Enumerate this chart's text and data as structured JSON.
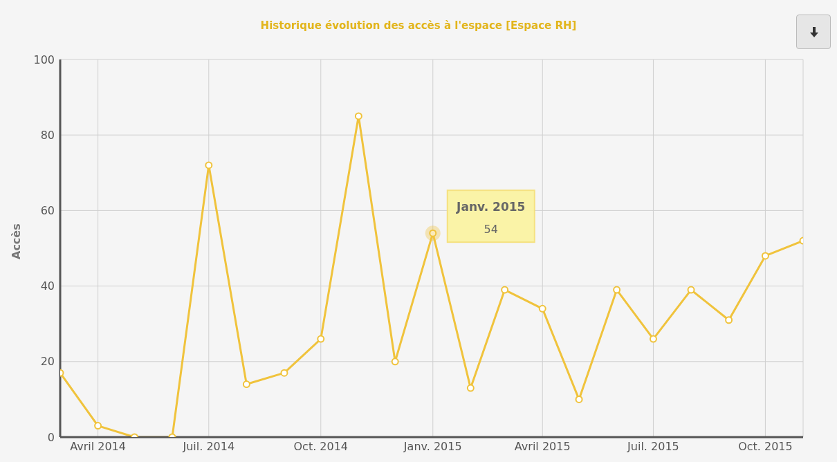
{
  "chart_data": {
    "type": "line",
    "title": "Historique évolution des accès à l'espace [Espace RH]",
    "ylabel": "Accès",
    "x": [
      "2014-03",
      "2014-04",
      "2014-05",
      "2014-06",
      "2014-07",
      "2014-08",
      "2014-09",
      "2014-10",
      "2014-11",
      "2014-12",
      "2015-01",
      "2015-02",
      "2015-03",
      "2015-04",
      "2015-05",
      "2015-06",
      "2015-07",
      "2015-08",
      "2015-09",
      "2015-10",
      "2015-11"
    ],
    "values": [
      17,
      3,
      0,
      0,
      72,
      14,
      17,
      26,
      85,
      20,
      54,
      13,
      39,
      34,
      10,
      39,
      26,
      39,
      31,
      48,
      52
    ],
    "color": "#f0c33c",
    "marker": "circle",
    "grid": true,
    "xlim": [
      "2014-03",
      "2015-11"
    ],
    "xticks": [
      {
        "value": "2014-04",
        "label": "Avril 2014"
      },
      {
        "value": "2014-07",
        "label": "Juil. 2014"
      },
      {
        "value": "2014-10",
        "label": "Oct. 2014"
      },
      {
        "value": "2015-01",
        "label": "Janv. 2015"
      },
      {
        "value": "2015-04",
        "label": "Avril 2015"
      },
      {
        "value": "2015-07",
        "label": "Juil. 2015"
      },
      {
        "value": "2015-10",
        "label": "Oct. 2015"
      }
    ],
    "ylim": [
      0,
      100
    ],
    "yticks": [
      0,
      20,
      40,
      60,
      80,
      100
    ],
    "annotations": [
      {
        "text": "Janv. 2015",
        "x": "2015-01",
        "y": 54
      },
      "54"
    ]
  }
}
